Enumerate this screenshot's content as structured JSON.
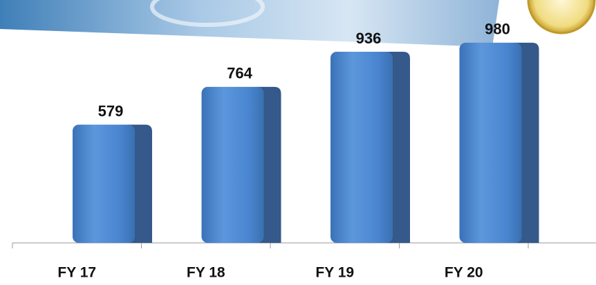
{
  "chart_data": {
    "type": "bar",
    "categories": [
      "FY 17",
      "FY 18",
      "FY 19",
      "FY 20"
    ],
    "values": [
      579,
      764,
      936,
      980
    ],
    "color": "#4a86d0",
    "ylim": [
      0,
      1000
    ]
  }
}
